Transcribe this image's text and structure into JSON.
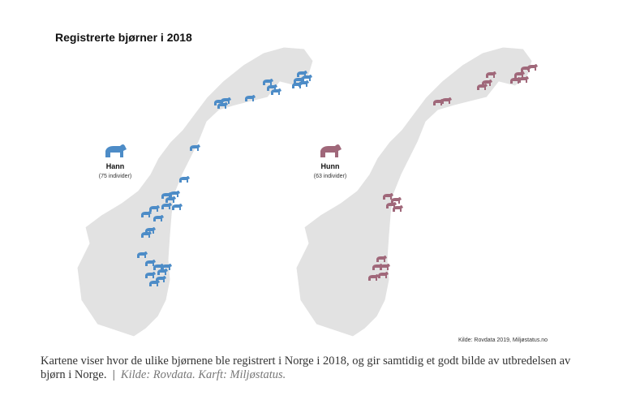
{
  "title": "Registrerte bjørner i 2018",
  "legend": [
    {
      "label": "Hann",
      "count": "(75 individer)"
    },
    {
      "label": "Hunn",
      "count": "(63 individer)"
    }
  ],
  "source": "Kilde: Rovdata 2019, Miljøstatus.no",
  "caption": {
    "text": "Kartene viser hvor de ulike bjørnene ble registrert i Norge i 2018, og gir samtidig et godt bilde av utbredelsen av bjørn i Norge.",
    "separator": "|",
    "credit": "Kilde: Rovdata. Karft: Miljøstatus."
  }
}
